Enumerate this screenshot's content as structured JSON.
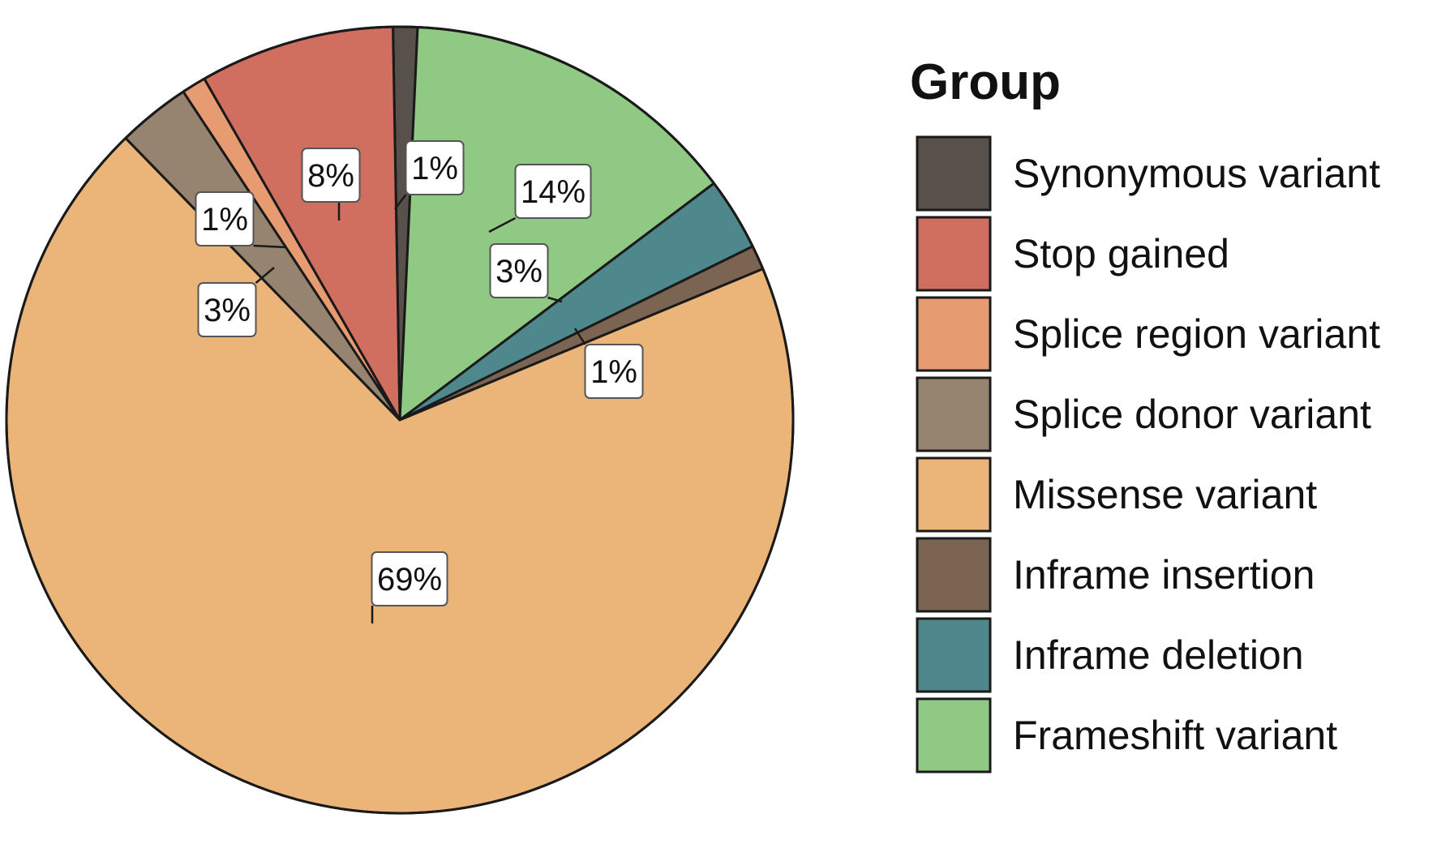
{
  "chart_data": {
    "type": "pie",
    "start_angle_deg": -1,
    "direction": "clockwise",
    "legend": {
      "title": "Group",
      "placement": "right"
    },
    "slices": [
      {
        "name": "Synonymous variant",
        "value": 1,
        "label": "1%",
        "color": "#57504b"
      },
      {
        "name": "Frameshift variant",
        "value": 14,
        "label": "14%",
        "color": "#90c983"
      },
      {
        "name": "Inframe deletion",
        "value": 3,
        "label": "3%",
        "color": "#4e878c"
      },
      {
        "name": "Inframe insertion",
        "value": 1,
        "label": "1%",
        "color": "#7b6451"
      },
      {
        "name": "Missense variant",
        "value": 69,
        "label": "69%",
        "color": "#ebb478"
      },
      {
        "name": "Splice donor variant",
        "value": 3,
        "label": "3%",
        "color": "#968471"
      },
      {
        "name": "Splice region variant",
        "value": 1,
        "label": "1%",
        "color": "#e79b71"
      },
      {
        "name": "Stop gained",
        "value": 8,
        "label": "8%",
        "color": "#d06e60"
      }
    ],
    "legend_order": [
      "Synonymous variant",
      "Stop gained",
      "Splice region variant",
      "Splice donor variant",
      "Missense variant",
      "Inframe insertion",
      "Inframe deletion",
      "Frameshift variant"
    ]
  }
}
